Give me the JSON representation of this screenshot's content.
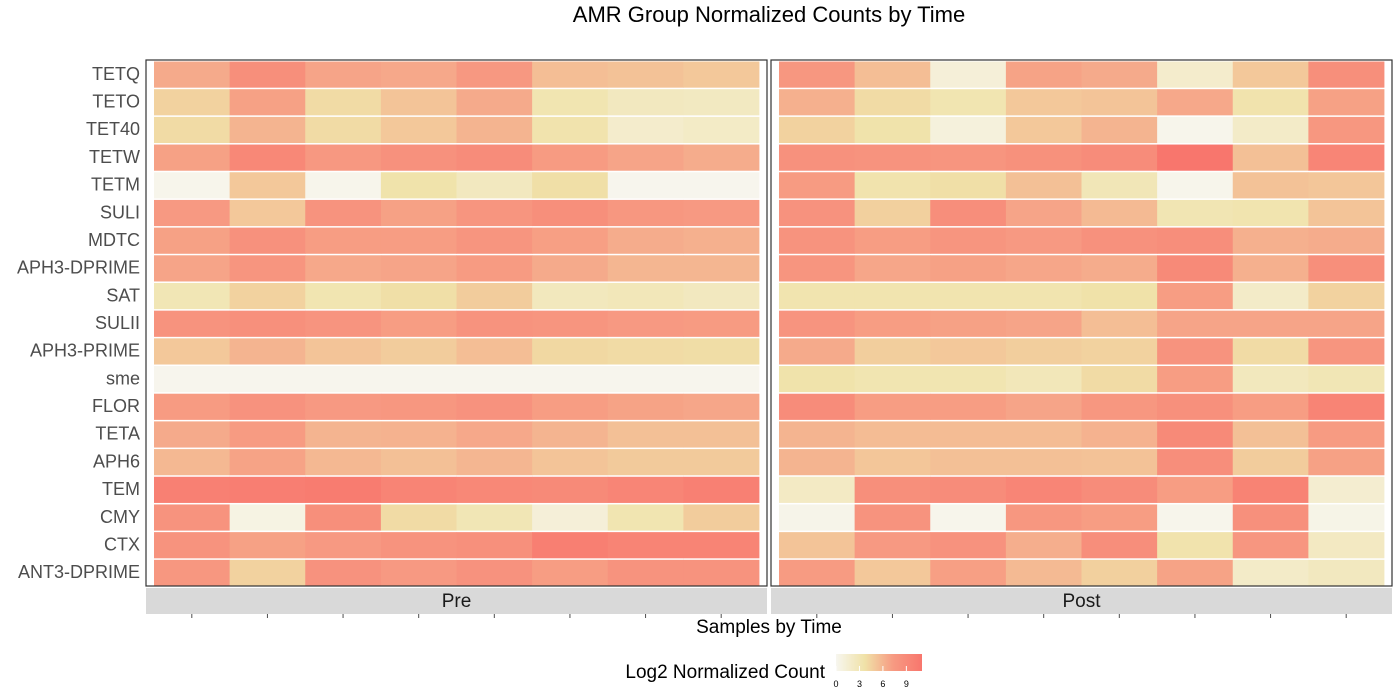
{
  "chart_data": {
    "type": "heatmap",
    "title": "AMR Group Normalized Counts by Time",
    "xlabel": "Samples by Time",
    "ylabel": "",
    "legend": {
      "title": "Log2 Normalized Count",
      "ticks": [
        0,
        3,
        6,
        9
      ],
      "range": [
        0,
        11
      ],
      "colors": [
        "#f7f6ef",
        "#f0e2a8",
        "#f79a82",
        "#f8766d"
      ],
      "position": "bottom"
    },
    "panels": [
      "Pre",
      "Post"
    ],
    "rows": [
      "TETQ",
      "TETO",
      "TET40",
      "TETW",
      "TETM",
      "SULI",
      "MDTC",
      "APH3-DPRIME",
      "SAT",
      "SULII",
      "APH3-PRIME",
      "sme",
      "FLOR",
      "TETA",
      "APH6",
      "TEM",
      "CMY",
      "CTX",
      "ANT3-DPRIME"
    ],
    "values": {
      "Pre": [
        [
          6.5,
          8.5,
          6.8,
          6.6,
          7.5,
          5.5,
          5.3,
          5.0
        ],
        [
          4.5,
          7.0,
          4.0,
          5.2,
          6.5,
          3.2,
          2.5,
          2.4
        ],
        [
          4.0,
          6.0,
          4.0,
          5.0,
          6.0,
          3.4,
          1.8,
          2.1
        ],
        [
          7.0,
          9.2,
          7.5,
          8.2,
          8.8,
          7.3,
          6.8,
          6.4
        ],
        [
          0.2,
          5.0,
          0.2,
          3.5,
          2.5,
          3.8,
          0.1,
          0.1
        ],
        [
          7.4,
          5.0,
          8.0,
          7.0,
          7.8,
          8.5,
          7.6,
          7.4
        ],
        [
          7.0,
          8.2,
          7.2,
          7.2,
          7.8,
          7.1,
          6.4,
          6.2
        ],
        [
          6.8,
          7.8,
          6.6,
          6.8,
          7.3,
          6.5,
          5.9,
          5.9
        ],
        [
          3.0,
          4.5,
          3.2,
          3.8,
          4.8,
          2.6,
          2.8,
          2.5
        ],
        [
          8.0,
          8.4,
          7.9,
          7.2,
          8.0,
          7.8,
          7.4,
          7.3
        ],
        [
          5.0,
          6.0,
          5.2,
          4.8,
          5.5,
          4.2,
          4.0,
          3.9
        ],
        [
          0.1,
          0.1,
          0.1,
          0.1,
          0.1,
          0.1,
          0.1,
          0.1
        ],
        [
          7.3,
          8.1,
          7.4,
          7.6,
          8.1,
          7.2,
          6.9,
          6.7
        ],
        [
          6.5,
          7.3,
          6.0,
          6.1,
          6.6,
          6.0,
          5.4,
          5.4
        ],
        [
          5.8,
          6.9,
          5.8,
          5.4,
          5.9,
          5.2,
          4.9,
          4.9
        ],
        [
          10.0,
          10.2,
          10.4,
          9.6,
          9.2,
          9.0,
          9.5,
          10.0
        ],
        [
          8.0,
          0.6,
          8.5,
          4.0,
          3.0,
          1.2,
          3.2,
          4.8
        ],
        [
          8.0,
          7.0,
          7.4,
          8.0,
          8.4,
          10.1,
          9.6,
          9.6
        ],
        [
          7.6,
          4.5,
          8.1,
          7.4,
          8.1,
          7.2,
          8.0,
          8.0
        ]
      ],
      "Post": [
        [
          7.6,
          5.5,
          1.2,
          6.9,
          6.5,
          1.8,
          5.0,
          8.5
        ],
        [
          6.2,
          4.0,
          3.2,
          5.0,
          5.2,
          6.6,
          3.4,
          7.0
        ],
        [
          4.5,
          3.5,
          1.0,
          5.0,
          6.0,
          0.2,
          2.0,
          7.6
        ],
        [
          8.2,
          8.0,
          7.8,
          8.3,
          8.8,
          11.0,
          5.4,
          9.5
        ],
        [
          7.3,
          3.4,
          3.8,
          5.4,
          2.9,
          0.2,
          5.3,
          5.1
        ],
        [
          8.1,
          4.6,
          8.6,
          6.8,
          5.7,
          3.1,
          3.3,
          5.2
        ],
        [
          8.0,
          7.2,
          7.8,
          7.4,
          8.2,
          8.6,
          6.2,
          6.4
        ],
        [
          7.8,
          6.7,
          7.0,
          6.7,
          6.4,
          9.0,
          6.2,
          8.5
        ],
        [
          3.3,
          3.3,
          3.3,
          3.3,
          3.6,
          7.2,
          2.0,
          4.5
        ],
        [
          7.9,
          7.2,
          7.0,
          6.8,
          5.5,
          6.8,
          6.8,
          6.8
        ],
        [
          6.5,
          4.7,
          5.0,
          4.7,
          4.5,
          8.0,
          4.0,
          7.8
        ],
        [
          3.5,
          3.2,
          3.2,
          2.8,
          4.0,
          7.2,
          2.6,
          3.0
        ],
        [
          8.8,
          7.2,
          7.2,
          6.8,
          7.6,
          8.4,
          7.2,
          9.6
        ],
        [
          6.0,
          5.6,
          5.6,
          5.6,
          6.1,
          9.0,
          5.4,
          7.3
        ],
        [
          6.0,
          5.1,
          5.4,
          5.4,
          5.3,
          8.6,
          4.8,
          7.0
        ],
        [
          2.2,
          8.5,
          8.8,
          9.5,
          8.8,
          7.2,
          9.7,
          1.6
        ],
        [
          0.3,
          8.0,
          0.2,
          7.6,
          7.2,
          0.2,
          8.4,
          0.4
        ],
        [
          5.2,
          7.4,
          8.1,
          6.3,
          8.6,
          3.4,
          7.7,
          2.3
        ],
        [
          7.3,
          5.0,
          7.1,
          5.7,
          4.6,
          6.9,
          2.0,
          2.5
        ]
      ]
    }
  }
}
